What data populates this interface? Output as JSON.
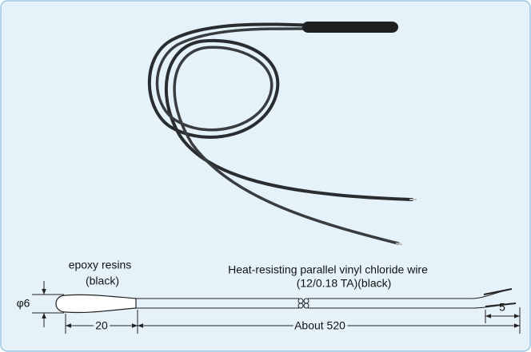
{
  "labels": {
    "head_material": "epoxy resins",
    "head_color": "(black)",
    "wire_material": "Heat-resisting parallel vinyl chloride wire",
    "wire_spec": "(12/0.18 TA)(black)",
    "diameter": "φ6",
    "head_length": "20",
    "total_length": "About 520",
    "lead_length": "5"
  }
}
